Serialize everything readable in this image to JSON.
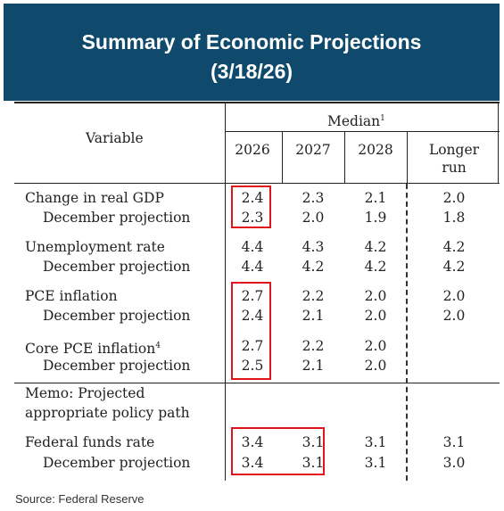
{
  "banner": {
    "title_line1": "Summary of Economic Projections",
    "title_line2": "(3/18/26)"
  },
  "table": {
    "variable_header": "Variable",
    "median_header": "Median",
    "median_footnote": "1",
    "columns": [
      "2026",
      "2027",
      "2028"
    ],
    "longer_run_line1": "Longer",
    "longer_run_line2": "run",
    "rows": [
      {
        "label": "Change in real GDP",
        "values": [
          "2.4",
          "2.3",
          "2.1",
          "2.0"
        ]
      },
      {
        "label": "December projection",
        "values": [
          "2.3",
          "2.0",
          "1.9",
          "1.8"
        ]
      },
      {
        "label": "Unemployment rate",
        "values": [
          "4.4",
          "4.3",
          "4.2",
          "4.2"
        ]
      },
      {
        "label": "December projection",
        "values": [
          "4.4",
          "4.2",
          "4.2",
          "4.2"
        ]
      },
      {
        "label": "PCE inflation",
        "values": [
          "2.7",
          "2.2",
          "2.0",
          "2.0"
        ]
      },
      {
        "label": "December projection",
        "values": [
          "2.4",
          "2.1",
          "2.0",
          "2.0"
        ]
      },
      {
        "label": "Core PCE inflation",
        "label_sup": "4",
        "values": [
          "2.7",
          "2.2",
          "2.0",
          ""
        ]
      },
      {
        "label": "December projection",
        "values": [
          "2.5",
          "2.1",
          "2.0",
          ""
        ]
      }
    ],
    "memo_line1": "Memo: Projected",
    "memo_line2": "appropriate policy path",
    "memo_rows": [
      {
        "label": "Federal funds rate",
        "values": [
          "3.4",
          "3.1",
          "3.1",
          "3.1"
        ]
      },
      {
        "label": "December projection",
        "values": [
          "3.4",
          "3.1",
          "3.1",
          "3.0"
        ]
      }
    ]
  },
  "source": "Source: Federal Reserve",
  "colors": {
    "banner": "#0f4a6d",
    "highlight": "#e0151b"
  }
}
